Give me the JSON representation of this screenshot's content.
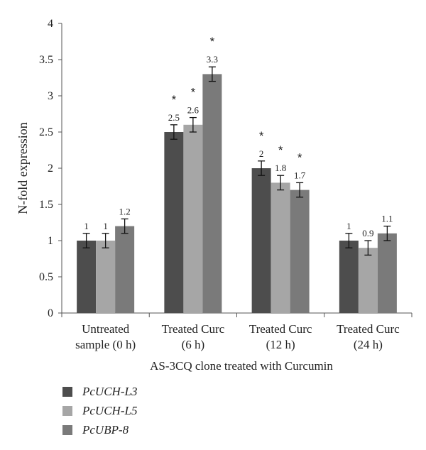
{
  "chart_data": {
    "type": "bar",
    "ylabel": "N-fold expression",
    "xlabel": "AS-3CQ clone treated with Curcumin",
    "ylim": [
      0,
      4
    ],
    "yticks": [
      "0",
      "0.5",
      "1",
      "1.5",
      "2",
      "2.5",
      "3",
      "3.5",
      "4"
    ],
    "categories": [
      [
        "Untreated",
        "sample (0 h)"
      ],
      [
        "Treated Curc",
        "(6 h)"
      ],
      [
        "Treated Curc",
        "(12 h)"
      ],
      [
        "Treated Curc",
        "(24 h)"
      ]
    ],
    "series": [
      {
        "name": "PcUCH-L3",
        "color": "#4d4d4d",
        "values": [
          1,
          2.5,
          2,
          1
        ],
        "errors": [
          0.1,
          0.1,
          0.1,
          0.1
        ],
        "labels": [
          "1",
          "2.5",
          "2",
          "1"
        ],
        "significant": [
          false,
          true,
          true,
          false
        ]
      },
      {
        "name": "PcUCH-L5",
        "color": "#a6a6a6",
        "values": [
          1,
          2.6,
          1.8,
          0.9
        ],
        "errors": [
          0.1,
          0.1,
          0.1,
          0.1
        ],
        "labels": [
          "1",
          "2.6",
          "1.8",
          "0.9"
        ],
        "significant": [
          false,
          true,
          true,
          false
        ]
      },
      {
        "name": "PcUBP-8",
        "color": "#7a7a7a",
        "values": [
          1.2,
          3.3,
          1.7,
          1.1
        ],
        "errors": [
          0.1,
          0.1,
          0.1,
          0.1
        ],
        "labels": [
          "1.2",
          "3.3",
          "1.7",
          "1.1"
        ],
        "significant": [
          false,
          true,
          true,
          false
        ]
      }
    ],
    "significance_marker": "*",
    "grid": false,
    "legend": "bottom-left"
  }
}
